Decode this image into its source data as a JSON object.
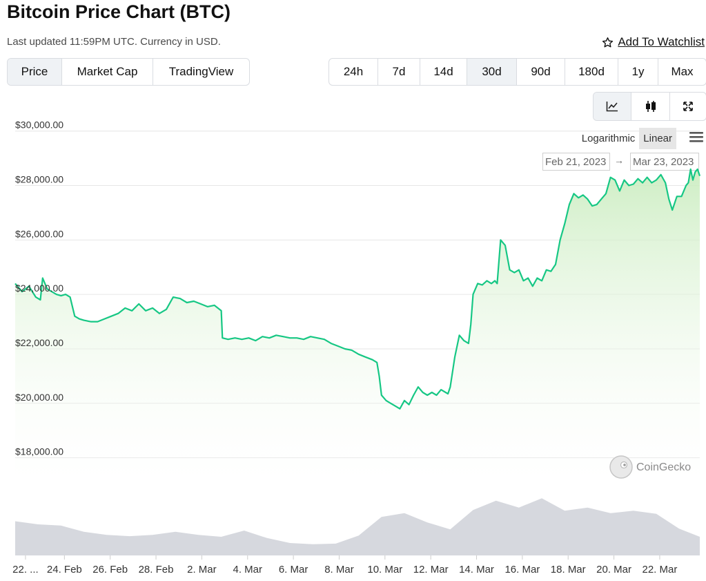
{
  "page": {
    "title": "Bitcoin Price Chart (BTC)",
    "subtitle": "Last updated 11:59PM UTC. Currency in USD.",
    "watchlist_label": "Add To Watchlist",
    "watchlist_icon": "star-outline-icon"
  },
  "view_tabs": [
    {
      "label": "Price",
      "active": true
    },
    {
      "label": "Market Cap",
      "active": false
    },
    {
      "label": "TradingView",
      "active": false
    }
  ],
  "range_tabs": [
    {
      "label": "24h",
      "active": false
    },
    {
      "label": "7d",
      "active": false
    },
    {
      "label": "14d",
      "active": false
    },
    {
      "label": "30d",
      "active": true
    },
    {
      "label": "90d",
      "active": false
    },
    {
      "label": "180d",
      "active": false
    },
    {
      "label": "1y",
      "active": false
    },
    {
      "label": "Max",
      "active": false
    }
  ],
  "chart_type_buttons": [
    {
      "icon": "line-chart-icon",
      "active": true
    },
    {
      "icon": "candlestick-icon",
      "active": false
    },
    {
      "icon": "expand-icon",
      "active": false
    }
  ],
  "scale_options": [
    {
      "label": "Logarithmic",
      "active": false
    },
    {
      "label": "Linear",
      "active": true
    }
  ],
  "menu_icon": "hamburger-menu-icon",
  "date_range": {
    "from": "Feb 21, 2023",
    "to": "Mar 23, 2023",
    "arrow": "→"
  },
  "watermark": {
    "label": "CoinGecko",
    "icon": "coingecko-logo-icon"
  },
  "colors": {
    "line": "#16c784",
    "fill_top": "#c9ecbe",
    "volume": "#d6d8de",
    "active_bg": "#eff2f5"
  },
  "chart_data": {
    "type": "area",
    "title": "Bitcoin Price Chart (BTC)",
    "ylim": [
      17000,
      30500
    ],
    "y_ticks": [
      {
        "value": 30000,
        "label": "$30,000.00"
      },
      {
        "value": 28000,
        "label": "$28,000.00"
      },
      {
        "value": 26000,
        "label": "$26,000.00"
      },
      {
        "value": 24000,
        "label": "$24,000.00"
      },
      {
        "value": 22000,
        "label": "$22,000.00"
      },
      {
        "value": 20000,
        "label": "$20,000.00"
      },
      {
        "value": 18000,
        "label": "$18,000.00"
      }
    ],
    "x_ticks": [
      {
        "day": 0.45,
        "label": "22. ..."
      },
      {
        "day": 2.15,
        "label": "24. Feb"
      },
      {
        "day": 4.15,
        "label": "26. Feb"
      },
      {
        "day": 6.15,
        "label": "28. Feb"
      },
      {
        "day": 8.15,
        "label": "2. Mar"
      },
      {
        "day": 10.15,
        "label": "4. Mar"
      },
      {
        "day": 12.15,
        "label": "6. Mar"
      },
      {
        "day": 14.15,
        "label": "8. Mar"
      },
      {
        "day": 16.15,
        "label": "10. Mar"
      },
      {
        "day": 18.15,
        "label": "12. Mar"
      },
      {
        "day": 20.15,
        "label": "14. Mar"
      },
      {
        "day": 22.15,
        "label": "16. Mar"
      },
      {
        "day": 24.15,
        "label": "18. Mar"
      },
      {
        "day": 26.15,
        "label": "20. Mar"
      },
      {
        "day": 28.15,
        "label": "22. Mar"
      }
    ],
    "series": [
      {
        "name": "Price",
        "x": [
          0,
          0.3,
          0.6,
          0.9,
          1.1,
          1.2,
          1.4,
          1.6,
          1.8,
          2.0,
          2.2,
          2.4,
          2.6,
          2.8,
          3.0,
          3.3,
          3.6,
          3.9,
          4.2,
          4.5,
          4.8,
          5.1,
          5.4,
          5.7,
          6.0,
          6.3,
          6.6,
          6.9,
          7.2,
          7.5,
          7.8,
          8.1,
          8.4,
          8.7,
          9.0,
          9.05,
          9.3,
          9.6,
          9.9,
          10.2,
          10.5,
          10.8,
          11.1,
          11.4,
          11.7,
          12.0,
          12.3,
          12.6,
          12.9,
          13.2,
          13.5,
          13.8,
          14.1,
          14.4,
          14.7,
          15.0,
          15.3,
          15.6,
          15.8,
          15.9,
          16.0,
          16.2,
          16.4,
          16.6,
          16.8,
          17.0,
          17.2,
          17.4,
          17.6,
          17.8,
          18.0,
          18.2,
          18.4,
          18.6,
          18.8,
          18.9,
          19.0,
          19.2,
          19.4,
          19.6,
          19.8,
          19.9,
          20.0,
          20.2,
          20.4,
          20.6,
          20.8,
          20.95,
          21.05,
          21.2,
          21.4,
          21.6,
          21.8,
          22.0,
          22.2,
          22.4,
          22.6,
          22.8,
          23.0,
          23.2,
          23.4,
          23.6,
          23.8,
          24.0,
          24.2,
          24.4,
          24.6,
          24.8,
          25.0,
          25.2,
          25.4,
          25.6,
          25.8,
          26.0,
          26.2,
          26.4,
          26.6,
          26.8,
          27.0,
          27.2,
          27.4,
          27.6,
          27.8,
          28.0,
          28.2,
          28.4,
          28.55,
          28.7,
          28.9,
          29.1,
          29.3,
          29.4,
          29.5,
          29.6,
          29.7,
          29.8,
          29.9
        ],
        "values": [
          24400,
          24100,
          24300,
          23900,
          23800,
          24600,
          24200,
          24100,
          24000,
          23950,
          24000,
          23900,
          23200,
          23100,
          23050,
          23000,
          23000,
          23100,
          23200,
          23300,
          23500,
          23400,
          23650,
          23400,
          23500,
          23300,
          23450,
          23900,
          23850,
          23700,
          23750,
          23650,
          23550,
          23600,
          23400,
          22400,
          22350,
          22400,
          22350,
          22400,
          22300,
          22450,
          22400,
          22500,
          22450,
          22400,
          22400,
          22350,
          22450,
          22400,
          22350,
          22200,
          22100,
          22000,
          21950,
          21800,
          21700,
          21600,
          21500,
          21000,
          20300,
          20100,
          20000,
          19900,
          19800,
          20100,
          19950,
          20300,
          20600,
          20400,
          20300,
          20400,
          20300,
          20500,
          20400,
          20350,
          20600,
          21700,
          22500,
          22300,
          22200,
          22900,
          24000,
          24400,
          24350,
          24500,
          24400,
          24500,
          24400,
          26000,
          25800,
          24900,
          24800,
          24900,
          24500,
          24600,
          24300,
          24600,
          24500,
          24900,
          24850,
          25100,
          26000,
          26600,
          27300,
          27700,
          27550,
          27650,
          27500,
          27250,
          27300,
          27500,
          27700,
          28300,
          28200,
          27800,
          28200,
          28000,
          28050,
          28250,
          28100,
          28300,
          28100,
          28200,
          28400,
          28100,
          27500,
          27100,
          27600,
          27600,
          28000,
          28100,
          28600,
          28200,
          28500,
          28600,
          28350
        ]
      },
      {
        "name": "Volume",
        "x": [
          0,
          1,
          2,
          3,
          4,
          5,
          6,
          7,
          8,
          9,
          10,
          11,
          12,
          13,
          14,
          15,
          16,
          17,
          18,
          19,
          20,
          21,
          22,
          23,
          24,
          25,
          26,
          27,
          28,
          29,
          29.9
        ],
        "values": [
          0.55,
          0.5,
          0.48,
          0.38,
          0.33,
          0.31,
          0.33,
          0.38,
          0.33,
          0.3,
          0.4,
          0.28,
          0.2,
          0.18,
          0.19,
          0.32,
          0.62,
          0.68,
          0.53,
          0.42,
          0.73,
          0.88,
          0.77,
          0.92,
          0.72,
          0.77,
          0.68,
          0.72,
          0.67,
          0.43,
          0.3
        ]
      }
    ]
  }
}
